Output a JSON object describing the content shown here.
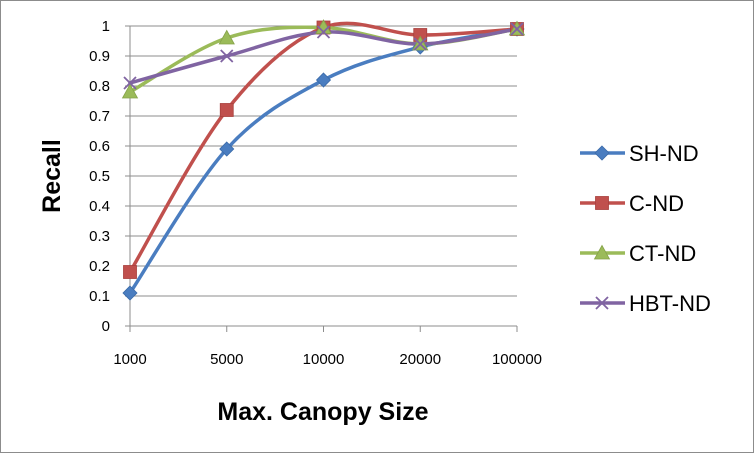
{
  "chart_data": {
    "type": "line",
    "title": "",
    "xlabel": "Max. Canopy Size",
    "ylabel": "Recall",
    "categories": [
      "1000",
      "5000",
      "10000",
      "20000",
      "100000"
    ],
    "yticks": [
      "0",
      "0.1",
      "0.2",
      "0.3",
      "0.4",
      "0.5",
      "0.6",
      "0.7",
      "0.8",
      "0.9",
      "1"
    ],
    "ylim": [
      0,
      1
    ],
    "grid": "horizontal",
    "legend_position": "right",
    "series": [
      {
        "name": "SH-ND",
        "values": [
          0.11,
          0.59,
          0.82,
          0.93,
          0.99
        ],
        "color": "#4a7dc0",
        "marker": "diamond"
      },
      {
        "name": "C-ND",
        "values": [
          0.18,
          0.72,
          0.995,
          0.97,
          0.99
        ],
        "color": "#c0504d",
        "marker": "square"
      },
      {
        "name": "CT-ND",
        "values": [
          0.78,
          0.96,
          0.995,
          0.94,
          0.99
        ],
        "color": "#9bbb59",
        "marker": "triangle"
      },
      {
        "name": "HBT-ND",
        "values": [
          0.81,
          0.9,
          0.98,
          0.94,
          0.99
        ],
        "color": "#8064a2",
        "marker": "x"
      }
    ]
  }
}
